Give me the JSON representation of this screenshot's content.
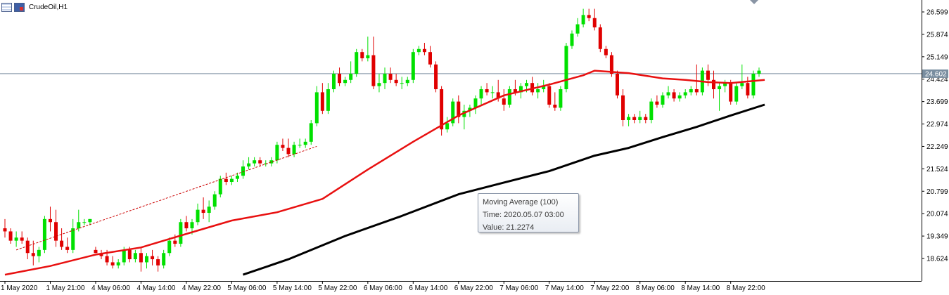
{
  "window": {
    "title": "CrudeOil,H1"
  },
  "tooltip": {
    "series": "Moving Average (100)",
    "time": "Time: 2020.05.07 03:00",
    "value": "Value: 21.2274"
  },
  "colors": {
    "bull": "#00e000",
    "bear": "#e00000",
    "ma_fast": "#e81010",
    "ma_slow": "#000000",
    "price_line": "#7a8ea0",
    "price_tag_bg": "#7a8ea0",
    "trendline": "#cc0000",
    "axis": "#000000",
    "tick_text": "#000000"
  },
  "chart_data": {
    "type": "candlestick",
    "symbol": "CrudeOil",
    "timeframe": "H1",
    "ylim": [
      18.1,
      27.0
    ],
    "yticks": [
      "26.599",
      "25.874",
      "25.149",
      "24.424",
      "23.699",
      "22.974",
      "22.249",
      "21.524",
      "20.799",
      "20.074",
      "19.349",
      "18.624"
    ],
    "xticks": [
      "1 May 2020",
      "1 May 21:00",
      "4 May 06:00",
      "4 May 14:00",
      "4 May 22:00",
      "5 May 06:00",
      "5 May 14:00",
      "5 May 22:00",
      "6 May 06:00",
      "6 May 14:00",
      "6 May 22:00",
      "7 May 06:00",
      "7 May 14:00",
      "7 May 22:00",
      "8 May 06:00",
      "8 May 14:00",
      "8 May 22:00"
    ],
    "xtick_index": [
      0,
      8,
      16,
      24,
      32,
      40,
      48,
      56,
      64,
      72,
      80,
      88,
      96,
      104,
      112,
      120,
      128
    ],
    "bar_count": 134,
    "current_price": "24.602",
    "current_price_value": 24.602,
    "candles": [
      [
        19.6,
        19.9,
        19.3,
        19.5
      ],
      [
        19.5,
        19.6,
        19.1,
        19.2
      ],
      [
        19.2,
        19.5,
        19.0,
        19.3
      ],
      [
        19.3,
        19.5,
        19.1,
        19.2
      ],
      [
        19.2,
        19.3,
        18.6,
        18.8
      ],
      [
        18.8,
        19.2,
        18.4,
        18.7
      ],
      [
        18.7,
        19.0,
        18.5,
        18.9
      ],
      [
        18.9,
        20.0,
        18.8,
        19.9
      ],
      [
        19.9,
        20.3,
        19.5,
        19.8
      ],
      [
        19.8,
        20.2,
        19.0,
        19.2
      ],
      [
        19.2,
        19.6,
        18.9,
        19.0
      ],
      [
        19.0,
        19.3,
        18.8,
        18.9
      ],
      [
        18.9,
        19.9,
        18.8,
        19.6
      ],
      [
        19.6,
        20.2,
        19.5,
        19.8
      ],
      [
        19.8,
        19.9,
        19.7,
        19.8
      ],
      [
        19.8,
        19.9,
        19.7,
        19.9
      ],
      [
        18.9,
        19.0,
        18.8,
        18.8
      ],
      [
        18.8,
        18.9,
        18.6,
        18.7
      ],
      [
        18.7,
        18.9,
        18.4,
        18.5
      ],
      [
        18.5,
        18.7,
        18.3,
        18.4
      ],
      [
        18.4,
        18.6,
        18.3,
        18.5
      ],
      [
        18.5,
        19.0,
        18.4,
        18.9
      ],
      [
        18.9,
        19.0,
        18.5,
        18.6
      ],
      [
        18.6,
        18.9,
        18.5,
        18.8
      ],
      [
        18.8,
        19.0,
        18.2,
        18.5
      ],
      [
        18.5,
        18.8,
        18.3,
        18.7
      ],
      [
        18.7,
        18.9,
        18.4,
        18.6
      ],
      [
        18.6,
        18.7,
        18.2,
        18.4
      ],
      [
        18.4,
        18.9,
        18.3,
        18.8
      ],
      [
        18.8,
        19.3,
        18.7,
        19.2
      ],
      [
        19.2,
        19.4,
        19.0,
        19.1
      ],
      [
        19.1,
        19.9,
        19.0,
        19.8
      ],
      [
        19.8,
        20.0,
        19.5,
        19.6
      ],
      [
        19.6,
        19.9,
        19.4,
        19.8
      ],
      [
        19.8,
        20.4,
        19.7,
        20.2
      ],
      [
        20.2,
        20.6,
        19.9,
        20.1
      ],
      [
        20.1,
        20.5,
        19.8,
        20.3
      ],
      [
        20.3,
        20.8,
        20.2,
        20.7
      ],
      [
        20.7,
        21.3,
        20.6,
        21.2
      ],
      [
        21.2,
        21.4,
        21.0,
        21.1
      ],
      [
        21.1,
        21.3,
        21.0,
        21.2
      ],
      [
        21.2,
        21.4,
        21.1,
        21.3
      ],
      [
        21.3,
        21.8,
        21.2,
        21.6
      ],
      [
        21.6,
        21.9,
        21.5,
        21.7
      ],
      [
        21.7,
        21.9,
        21.6,
        21.8
      ],
      [
        21.8,
        21.9,
        21.6,
        21.7
      ],
      [
        21.7,
        21.8,
        21.6,
        21.7
      ],
      [
        21.7,
        21.9,
        21.6,
        21.8
      ],
      [
        21.8,
        22.4,
        21.7,
        22.3
      ],
      [
        22.3,
        22.5,
        22.1,
        22.2
      ],
      [
        22.2,
        22.5,
        21.9,
        22.0
      ],
      [
        22.0,
        22.4,
        21.9,
        22.3
      ],
      [
        22.3,
        22.5,
        22.2,
        22.3
      ],
      [
        22.3,
        22.5,
        22.2,
        22.4
      ],
      [
        22.4,
        23.1,
        22.3,
        23.0
      ],
      [
        23.0,
        24.2,
        22.9,
        24.0
      ],
      [
        24.0,
        24.3,
        23.3,
        23.4
      ],
      [
        23.4,
        24.3,
        23.3,
        24.1
      ],
      [
        24.1,
        24.7,
        24.0,
        24.6
      ],
      [
        24.6,
        24.8,
        24.2,
        24.3
      ],
      [
        24.3,
        24.5,
        24.2,
        24.4
      ],
      [
        24.4,
        25.0,
        24.3,
        24.6
      ],
      [
        24.6,
        25.4,
        24.5,
        25.3
      ],
      [
        25.3,
        25.4,
        25.0,
        25.1
      ],
      [
        25.1,
        25.8,
        25.0,
        25.2
      ],
      [
        25.2,
        25.8,
        24.1,
        24.2
      ],
      [
        24.2,
        24.6,
        24.0,
        24.3
      ],
      [
        24.3,
        24.8,
        24.1,
        24.6
      ],
      [
        24.6,
        24.8,
        24.3,
        24.4
      ],
      [
        24.4,
        24.6,
        24.2,
        24.3
      ],
      [
        24.3,
        24.5,
        24.1,
        24.3
      ],
      [
        24.3,
        24.5,
        24.2,
        24.4
      ],
      [
        24.4,
        25.4,
        24.3,
        25.3
      ],
      [
        25.3,
        25.5,
        25.2,
        25.4
      ],
      [
        25.4,
        25.6,
        25.2,
        25.3
      ],
      [
        25.3,
        25.5,
        24.8,
        24.9
      ],
      [
        24.9,
        25.0,
        24.0,
        24.1
      ],
      [
        24.1,
        24.2,
        22.6,
        22.8
      ],
      [
        22.8,
        23.2,
        22.7,
        23.0
      ],
      [
        23.0,
        23.8,
        22.9,
        23.7
      ],
      [
        23.7,
        23.9,
        23.0,
        23.2
      ],
      [
        23.2,
        23.6,
        22.8,
        23.4
      ],
      [
        23.4,
        23.6,
        23.2,
        23.5
      ],
      [
        23.5,
        23.9,
        23.3,
        23.8
      ],
      [
        23.8,
        24.2,
        23.6,
        24.1
      ],
      [
        24.1,
        24.3,
        23.9,
        24.0
      ],
      [
        24.0,
        24.2,
        23.8,
        24.0
      ],
      [
        24.0,
        24.4,
        23.7,
        23.8
      ],
      [
        23.8,
        24.1,
        23.4,
        23.6
      ],
      [
        23.6,
        24.2,
        23.5,
        24.1
      ],
      [
        24.1,
        24.4,
        23.9,
        24.0
      ],
      [
        24.0,
        24.3,
        23.8,
        24.2
      ],
      [
        24.2,
        24.4,
        24.0,
        24.3
      ],
      [
        24.3,
        24.5,
        23.9,
        24.0
      ],
      [
        24.0,
        24.3,
        23.8,
        24.1
      ],
      [
        24.1,
        24.4,
        24.0,
        24.2
      ],
      [
        24.2,
        24.3,
        23.5,
        23.6
      ],
      [
        23.6,
        24.0,
        23.4,
        23.5
      ],
      [
        23.5,
        24.2,
        23.4,
        24.1
      ],
      [
        24.1,
        25.6,
        24.0,
        25.5
      ],
      [
        25.5,
        26.0,
        25.4,
        25.9
      ],
      [
        25.9,
        26.4,
        25.8,
        26.2
      ],
      [
        26.2,
        26.7,
        26.1,
        26.5
      ],
      [
        26.5,
        26.7,
        26.3,
        26.4
      ],
      [
        26.4,
        26.7,
        26.0,
        26.1
      ],
      [
        26.1,
        26.2,
        25.3,
        25.4
      ],
      [
        25.4,
        25.5,
        25.1,
        25.2
      ],
      [
        25.2,
        25.3,
        24.5,
        24.6
      ],
      [
        24.6,
        24.7,
        23.8,
        23.9
      ],
      [
        23.9,
        24.1,
        22.9,
        23.1
      ],
      [
        23.1,
        23.3,
        22.9,
        23.2
      ],
      [
        23.2,
        23.3,
        23.0,
        23.1
      ],
      [
        23.1,
        23.4,
        23.0,
        23.2
      ],
      [
        23.2,
        23.3,
        23.0,
        23.1
      ],
      [
        23.1,
        23.8,
        23.0,
        23.7
      ],
      [
        23.7,
        23.9,
        23.5,
        23.6
      ],
      [
        23.6,
        24.0,
        23.5,
        23.9
      ],
      [
        23.9,
        24.2,
        23.8,
        24.0
      ],
      [
        24.0,
        24.1,
        23.7,
        23.8
      ],
      [
        23.8,
        24.0,
        23.7,
        23.9
      ],
      [
        23.9,
        24.1,
        23.8,
        24.0
      ],
      [
        24.0,
        24.2,
        23.9,
        24.1
      ],
      [
        24.1,
        24.9,
        23.9,
        24.0
      ],
      [
        24.0,
        24.8,
        23.9,
        24.7
      ],
      [
        24.7,
        24.9,
        24.2,
        24.4
      ],
      [
        24.4,
        24.7,
        23.8,
        24.1
      ],
      [
        24.1,
        24.3,
        23.4,
        24.2
      ],
      [
        24.2,
        24.4,
        24.0,
        24.3
      ],
      [
        24.3,
        24.4,
        23.6,
        23.7
      ],
      [
        23.7,
        24.3,
        23.6,
        24.2
      ],
      [
        24.2,
        24.9,
        24.1,
        24.3
      ],
      [
        24.3,
        24.5,
        23.8,
        23.9
      ],
      [
        23.9,
        24.7,
        23.8,
        24.6
      ],
      [
        24.6,
        24.8,
        24.5,
        24.7
      ]
    ],
    "ma_fast": [
      [
        0,
        18.1
      ],
      [
        8,
        18.38
      ],
      [
        16,
        18.75
      ],
      [
        24,
        18.98
      ],
      [
        32,
        19.42
      ],
      [
        40,
        19.85
      ],
      [
        48,
        20.12
      ],
      [
        56,
        20.55
      ],
      [
        64,
        21.5
      ],
      [
        72,
        22.4
      ],
      [
        80,
        23.25
      ],
      [
        88,
        23.9
      ],
      [
        96,
        24.25
      ],
      [
        102,
        24.55
      ],
      [
        104,
        24.7
      ],
      [
        110,
        24.62
      ],
      [
        116,
        24.45
      ],
      [
        120,
        24.4
      ],
      [
        124,
        24.33
      ],
      [
        128,
        24.3
      ],
      [
        134,
        24.4
      ]
    ],
    "ma_slow": [
      [
        42,
        18.1
      ],
      [
        50,
        18.6
      ],
      [
        60,
        19.35
      ],
      [
        70,
        20.0
      ],
      [
        80,
        20.7
      ],
      [
        88,
        21.08
      ],
      [
        96,
        21.45
      ],
      [
        104,
        21.95
      ],
      [
        110,
        22.2
      ],
      [
        116,
        22.55
      ],
      [
        122,
        22.88
      ],
      [
        128,
        23.25
      ],
      [
        134,
        23.6
      ]
    ],
    "trendline": [
      [
        2,
        18.9
      ],
      [
        55,
        22.25
      ]
    ]
  }
}
